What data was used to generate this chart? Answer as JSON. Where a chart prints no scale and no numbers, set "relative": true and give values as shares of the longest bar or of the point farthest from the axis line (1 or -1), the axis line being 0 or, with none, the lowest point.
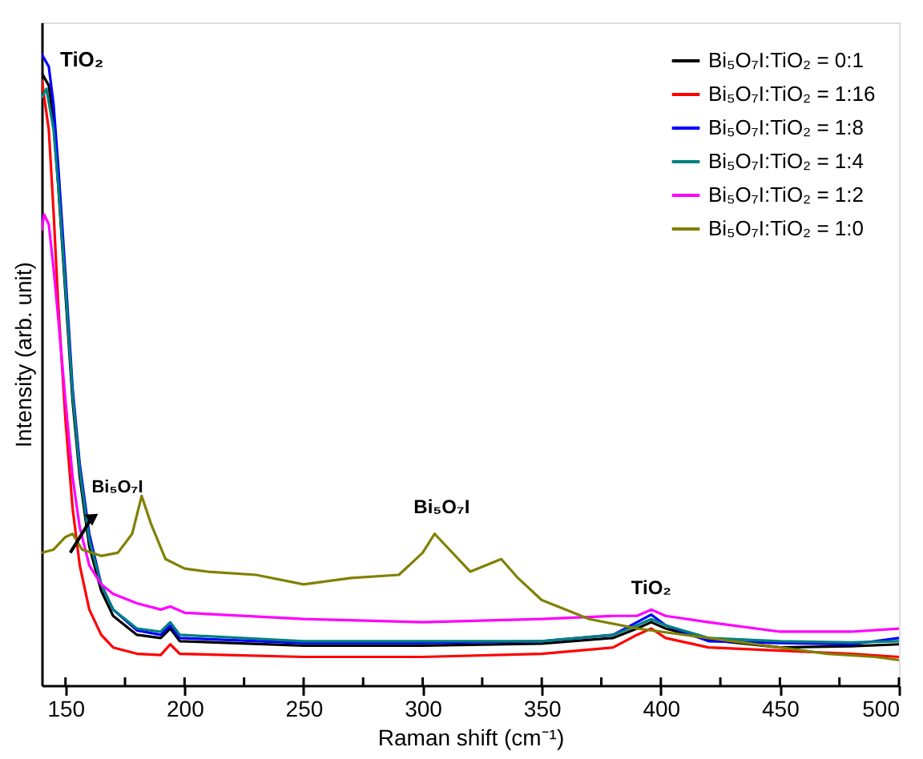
{
  "chart_data": {
    "type": "line",
    "relative": true,
    "xlabel": "Raman shift (cm⁻¹)",
    "ylabel": "Intensity (arb. unit)",
    "xlim": [
      140,
      500
    ],
    "xticks": [
      150,
      {
        "value": 175,
        "label": null
      },
      200,
      {
        "value": 225,
        "label": null
      },
      250,
      {
        "value": 275,
        "label": null
      },
      300,
      {
        "value": 325,
        "label": null
      },
      350,
      {
        "value": 375,
        "label": null
      },
      400,
      {
        "value": 425,
        "label": null
      },
      450,
      {
        "value": 475,
        "label": null
      },
      500
    ],
    "legend": "top right",
    "grid": false,
    "annotations": [
      {
        "text": "TiO₂",
        "x": 141,
        "y": 1.0
      },
      {
        "text": "Bi₅O₇I",
        "x": 152,
        "y": 0.21
      },
      {
        "text": "Bi₅O₇I",
        "x": 308,
        "y": 0.24
      },
      {
        "text": "TiO₂",
        "x": 396,
        "y": 0.112
      }
    ],
    "series": [
      {
        "name": "Bi₅O₇I:TiO₂ = 0:1",
        "color": "#000000",
        "x": [
          140,
          143,
          145,
          147,
          150,
          153,
          156,
          160,
          165,
          170,
          180,
          190,
          194,
          198,
          250,
          300,
          350,
          380,
          390,
          396,
          402,
          420,
          450,
          480,
          500
        ],
        "values": [
          0.97,
          0.95,
          0.89,
          0.79,
          0.62,
          0.45,
          0.33,
          0.22,
          0.15,
          0.11,
          0.08,
          0.075,
          0.09,
          0.07,
          0.063,
          0.063,
          0.066,
          0.075,
          0.09,
          0.1,
          0.09,
          0.072,
          0.06,
          0.062,
          0.065
        ]
      },
      {
        "name": "Bi₅O₇I:TiO₂ = 1:16",
        "color": "#ff0000",
        "x": [
          140,
          143,
          145,
          147,
          150,
          153,
          156,
          160,
          165,
          170,
          180,
          190,
          194,
          198,
          250,
          300,
          350,
          380,
          390,
          396,
          402,
          420,
          450,
          480,
          500
        ],
        "values": [
          0.96,
          0.88,
          0.75,
          0.6,
          0.42,
          0.28,
          0.19,
          0.12,
          0.08,
          0.06,
          0.05,
          0.048,
          0.065,
          0.05,
          0.045,
          0.045,
          0.05,
          0.06,
          0.08,
          0.09,
          0.075,
          0.06,
          0.055,
          0.05,
          0.045
        ]
      },
      {
        "name": "Bi₅O₇I:TiO₂ = 1:8",
        "color": "#0000ff",
        "x": [
          140,
          143,
          145,
          147,
          150,
          153,
          156,
          160,
          165,
          170,
          180,
          190,
          194,
          198,
          250,
          300,
          350,
          380,
          390,
          396,
          402,
          420,
          450,
          480,
          500
        ],
        "values": [
          1.0,
          0.98,
          0.92,
          0.82,
          0.65,
          0.47,
          0.35,
          0.24,
          0.16,
          0.12,
          0.087,
          0.08,
          0.095,
          0.075,
          0.067,
          0.067,
          0.07,
          0.08,
          0.1,
          0.112,
          0.095,
          0.07,
          0.067,
          0.065,
          0.075
        ]
      },
      {
        "name": "Bi₅O₇I:TiO₂ = 1:4",
        "color": "#008080",
        "x": [
          140,
          142,
          145,
          147,
          150,
          153,
          156,
          160,
          165,
          170,
          180,
          190,
          194,
          198,
          250,
          300,
          350,
          380,
          390,
          396,
          402,
          420,
          450,
          480,
          500
        ],
        "values": [
          0.93,
          0.945,
          0.88,
          0.79,
          0.63,
          0.46,
          0.34,
          0.23,
          0.16,
          0.12,
          0.09,
          0.085,
          0.1,
          0.08,
          0.07,
          0.07,
          0.07,
          0.08,
          0.095,
          0.105,
          0.095,
          0.075,
          0.07,
          0.068,
          0.07
        ]
      },
      {
        "name": "Bi₅O₇I:TiO₂ = 1:2",
        "color": "#ff00ff",
        "x": [
          140,
          141,
          143,
          145,
          147,
          150,
          153,
          156,
          160,
          165,
          170,
          180,
          190,
          194,
          200,
          250,
          300,
          350,
          380,
          390,
          396,
          402,
          420,
          450,
          480,
          500
        ],
        "values": [
          0.72,
          0.746,
          0.73,
          0.66,
          0.58,
          0.45,
          0.33,
          0.25,
          0.19,
          0.16,
          0.145,
          0.13,
          0.12,
          0.125,
          0.115,
          0.105,
          0.1,
          0.105,
          0.11,
          0.11,
          0.12,
          0.11,
          0.1,
          0.085,
          0.085,
          0.09
        ]
      },
      {
        "name": "Bi₅O₇I:TiO₂ = 1:0",
        "color": "#808000",
        "x": [
          140,
          145,
          150,
          153,
          157,
          165,
          172,
          178,
          182,
          186,
          192,
          200,
          210,
          230,
          250,
          270,
          290,
          300,
          305,
          310,
          320,
          333,
          340,
          350,
          370,
          390,
          420,
          450,
          470,
          490,
          500
        ],
        "values": [
          0.21,
          0.215,
          0.235,
          0.24,
          0.215,
          0.205,
          0.21,
          0.24,
          0.3,
          0.255,
          0.2,
          0.185,
          0.18,
          0.175,
          0.16,
          0.17,
          0.175,
          0.21,
          0.24,
          0.22,
          0.18,
          0.2,
          0.17,
          0.135,
          0.105,
          0.09,
          0.075,
          0.06,
          0.05,
          0.045,
          0.04
        ]
      }
    ]
  }
}
